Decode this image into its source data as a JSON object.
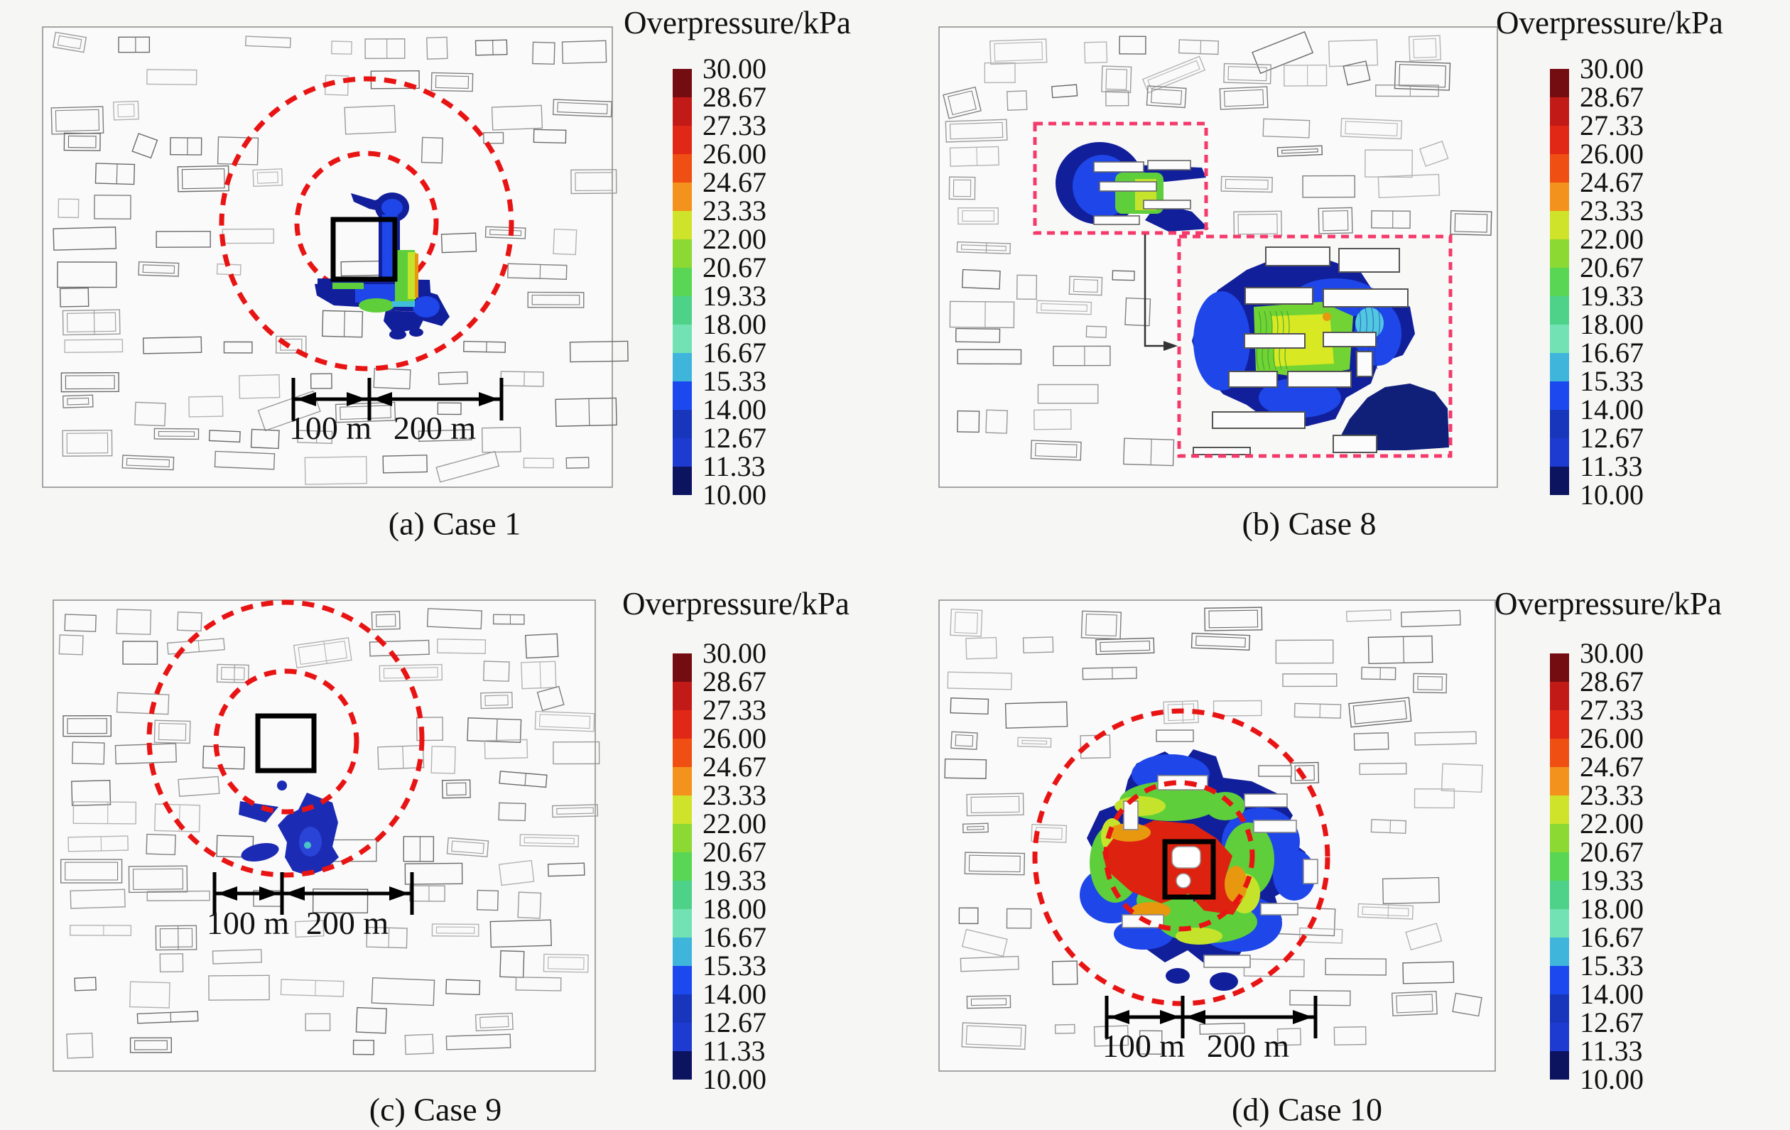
{
  "colorbar": {
    "title": "Overpressure/kPa",
    "labels": [
      "30.00",
      "28.67",
      "27.33",
      "26.00",
      "24.67",
      "23.33",
      "22.00",
      "20.67",
      "19.33",
      "18.00",
      "16.67",
      "15.33",
      "14.00",
      "12.67",
      "11.33",
      "10.00"
    ],
    "colors": [
      "#730d11",
      "#c21a17",
      "#e12816",
      "#ef4f13",
      "#f3921c",
      "#cfe32a",
      "#8bd932",
      "#59d654",
      "#4ed289",
      "#72e2b4",
      "#40b5dc",
      "#1c49ef",
      "#1736bb",
      "#1d3bd0",
      "#0c135f"
    ]
  },
  "panels": {
    "a": {
      "caption": "(a) Case 1",
      "scale_100": "100 m",
      "scale_200": "200 m"
    },
    "b": {
      "caption": "(b) Case 8"
    },
    "c": {
      "caption": "(c) Case 9",
      "scale_100": "100 m",
      "scale_200": "200 m"
    },
    "d": {
      "caption": "(d) Case 10",
      "scale_100": "100 m",
      "scale_200": "200 m"
    }
  },
  "accents": {
    "range_circle": "#e81414",
    "inset_outline": "#f43a6a",
    "source_square": "#000000",
    "plume_navy": "#121f9a",
    "plume_blue": "#1e46e8",
    "plume_green": "#5ecf3a",
    "plume_yellow": "#c6e32c",
    "plume_orange": "#e8980f",
    "plume_cyan": "#3fc0d8",
    "plume_red": "#dd2310"
  },
  "chart_data": {
    "type": "heatmap",
    "title": "Overpressure/kPa",
    "units": "kPa",
    "value_range": [
      10.0,
      30.0
    ],
    "legend_position": "right of each panel",
    "legend_ticks": [
      30.0,
      28.67,
      27.33,
      26.0,
      24.67,
      23.33,
      22.0,
      20.67,
      19.33,
      18.0,
      16.67,
      15.33,
      14.0,
      12.67,
      11.33,
      10.0
    ],
    "panels": [
      {
        "label": "(a) Case 1",
        "scale_markers_m": [
          100,
          200
        ],
        "features": "overpressure plume beside source square, two dashed range circles of 100 m and 200 m radius"
      },
      {
        "label": "(b) Case 8",
        "features": "small plume region with dashed outline box linked by arrow to magnified dashed inset showing contour detail among buildings"
      },
      {
        "label": "(c) Case 9",
        "scale_markers_m": [
          100,
          200
        ],
        "features": "small dark-blue plume south of source square, two dashed range circles"
      },
      {
        "label": "(d) Case 10",
        "scale_markers_m": [
          100,
          200
        ],
        "features": "large plume with red high-overpressure core around source square, dashed range circles"
      }
    ]
  }
}
